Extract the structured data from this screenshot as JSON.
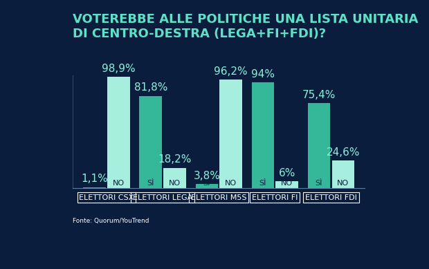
{
  "chart_data": {
    "type": "bar",
    "title": "VOTEREBBE ALLE POLITICHE UNA LISTA UNITARIA DI CENTRO-DESTRA (LEGA+FI+FDI)?",
    "source": "Fonte: Quorum/YouTrend",
    "categories": [
      "ELETTORI CSX",
      "ELETTORI LEGA",
      "ELETTORI M5S",
      "ELETTORI FI",
      "ELETTORI FDI"
    ],
    "series": [
      {
        "name": "SÌ",
        "color": "#35b89a",
        "values": [
          1.1,
          81.8,
          3.8,
          94,
          75.4
        ],
        "value_labels": [
          "1,1%",
          "81,8%",
          "3,8%",
          "94%",
          "75,4%"
        ]
      },
      {
        "name": "NO",
        "color": "#a6efdf",
        "values": [
          98.9,
          18.2,
          96.2,
          6,
          24.6
        ],
        "value_labels": [
          "98,9%",
          "18,2%",
          "96,2%",
          "6%",
          "24,6%"
        ]
      }
    ],
    "ylim": [
      0,
      100
    ],
    "yticks": [],
    "data_labels": true,
    "tick_labels": "x",
    "grid": false
  }
}
